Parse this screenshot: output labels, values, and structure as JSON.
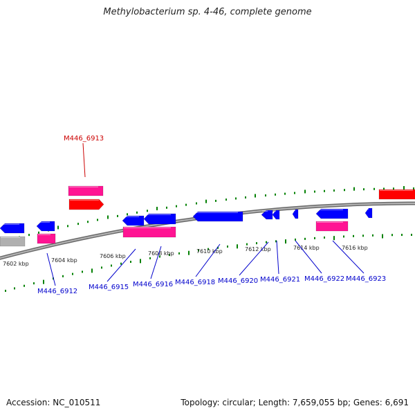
{
  "title": "Methylobacterium sp. 4-46, complete genome",
  "footer": {
    "accession": "Accession: NC_010511",
    "summary": "Topology: circular; Length: 7,659,055 bp; Genes: 6,691"
  },
  "colors": {
    "forward_cds": "#ff0000",
    "forward_rna": "#ff1493",
    "reverse_cds": "#0000ff",
    "reverse_rna": "#ff1493",
    "pseudo": "#b0b0b0",
    "tick": "#008000",
    "backbone": "#888888",
    "label_forward": "#cc0000",
    "label_reverse": "#0000cc"
  },
  "scale_ticks": [
    "7602 kbp",
    "7604 kbp",
    "7606 kbp",
    "7608 kbp",
    "7610 kbp",
    "7612 kbp",
    "7614 kbp",
    "7616 kbp"
  ],
  "gene_labels": [
    {
      "text": "M446_6913",
      "strand": "forward"
    },
    {
      "text": "M446_6912",
      "strand": "reverse"
    },
    {
      "text": "M446_6915",
      "strand": "reverse"
    },
    {
      "text": "M446_6916",
      "strand": "reverse"
    },
    {
      "text": "M446_6918",
      "strand": "reverse"
    },
    {
      "text": "M446_6920",
      "strand": "reverse"
    },
    {
      "text": "M446_6921",
      "strand": "reverse"
    },
    {
      "text": "M446_6922",
      "strand": "reverse"
    },
    {
      "text": "M446_6923",
      "strand": "reverse"
    }
  ]
}
